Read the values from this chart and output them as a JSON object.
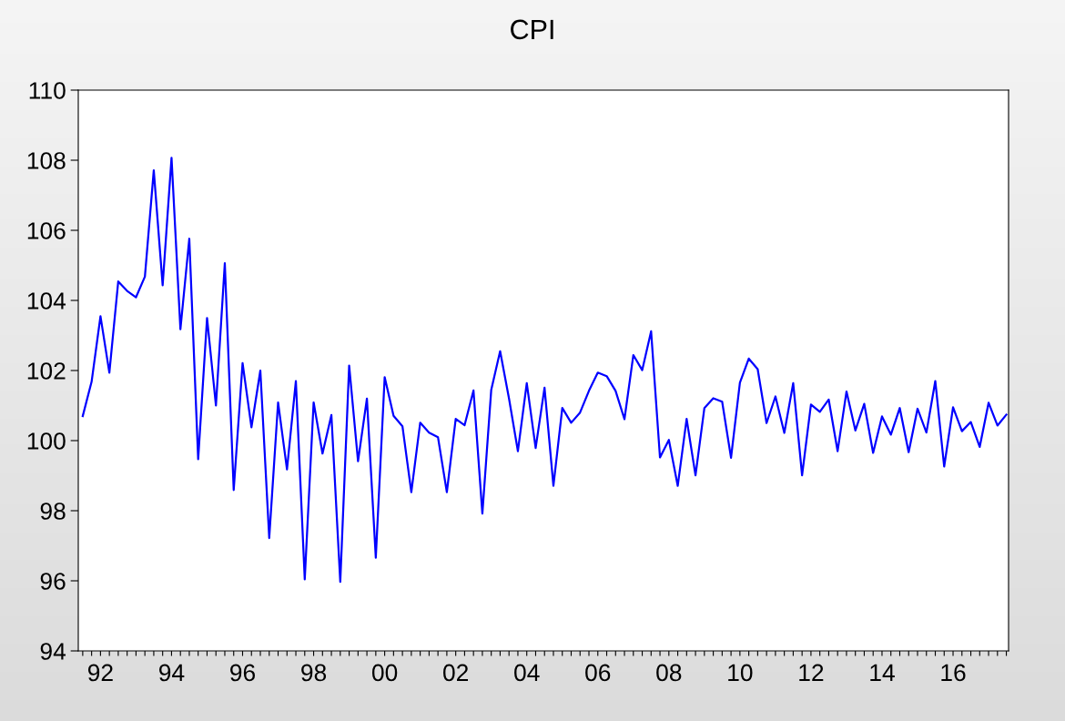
{
  "chart_data": {
    "type": "line",
    "title": "CPI",
    "categories": [
      null,
      null,
      "92",
      null,
      null,
      null,
      null,
      null,
      null,
      null,
      "94",
      null,
      null,
      null,
      null,
      null,
      null,
      null,
      "96",
      null,
      null,
      null,
      null,
      null,
      null,
      null,
      "98",
      null,
      null,
      null,
      null,
      null,
      null,
      null,
      "00",
      null,
      null,
      null,
      null,
      null,
      null,
      null,
      "02",
      null,
      null,
      null,
      null,
      null,
      null,
      null,
      "04",
      null,
      null,
      null,
      null,
      null,
      null,
      null,
      "06",
      null,
      null,
      null,
      null,
      null,
      null,
      null,
      "08",
      null,
      null,
      null,
      null,
      null,
      null,
      null,
      "10",
      null,
      null,
      null,
      null,
      null,
      null,
      null,
      "12",
      null,
      null,
      null,
      null,
      null,
      null,
      null,
      "14",
      null,
      null,
      null,
      null,
      null,
      null,
      null,
      "16",
      null,
      null,
      null,
      null,
      null,
      null
    ],
    "series": [
      {
        "color": "#0000ff",
        "values": [
          100.7,
          101.68,
          103.55,
          101.94,
          104.54,
          104.27,
          104.09,
          104.68,
          107.71,
          104.43,
          108.07,
          103.18,
          105.76,
          99.47,
          103.5,
          101.0,
          105.06,
          98.59,
          102.21,
          100.38,
          102.0,
          97.22,
          101.09,
          99.18,
          101.7,
          96.04,
          101.09,
          99.63,
          100.73,
          95.97,
          102.14,
          99.41,
          101.2,
          96.66,
          101.81,
          100.71,
          100.41,
          98.53,
          100.51,
          100.23,
          100.1,
          98.53,
          100.62,
          100.44,
          101.43,
          97.92,
          101.45,
          102.55,
          101.2,
          99.7,
          101.64,
          99.79,
          101.51,
          98.71,
          100.93,
          100.51,
          100.8,
          101.42,
          101.94,
          101.84,
          101.42,
          100.61,
          102.44,
          102.01,
          103.12,
          99.52,
          100.02,
          98.71,
          100.62,
          99.01,
          100.93,
          101.21,
          101.11,
          99.51,
          101.65,
          102.34,
          102.04,
          100.5,
          101.26,
          100.22,
          101.64,
          99.01,
          101.03,
          100.82,
          101.17,
          99.7,
          101.4,
          100.29,
          101.05,
          99.65,
          100.69,
          100.17,
          100.93,
          99.67,
          100.91,
          100.23,
          101.7,
          99.26,
          100.95,
          100.27,
          100.53,
          99.82,
          101.08,
          100.43,
          100.74
        ]
      }
    ],
    "ylim": [
      94,
      110
    ],
    "yticks": [
      94,
      96,
      98,
      100,
      102,
      104,
      106,
      108,
      110
    ],
    "grid": false,
    "legend": false
  }
}
